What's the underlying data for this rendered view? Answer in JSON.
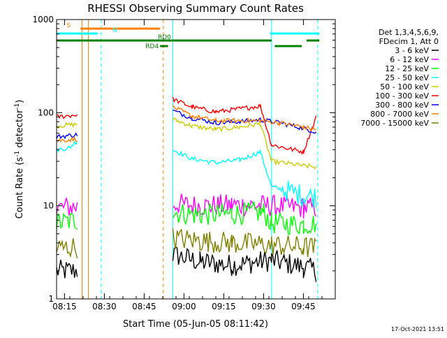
{
  "chart_data": {
    "type": "line",
    "title": "RHESSI Observing Summary Count Rates",
    "xlabel": "Start Time (05-Jun-05 08:11:42)",
    "ylabel_main": "Count Rate (s",
    "ylabel_sup1": "-1",
    "ylabel_mid": " detector",
    "ylabel_sup2": "-1",
    "ylabel_end": ")",
    "yscale": "log",
    "ylim": [
      1,
      1000
    ],
    "xlim_minutes": [
      8.2,
      9.95
    ],
    "x_ticks": [
      {
        "v": 8.25,
        "label": "08:15"
      },
      {
        "v": 8.5,
        "label": "08:30"
      },
      {
        "v": 8.75,
        "label": "08:45"
      },
      {
        "v": 9.0,
        "label": "09:00"
      },
      {
        "v": 9.25,
        "label": "09:15"
      },
      {
        "v": 9.5,
        "label": "09:30"
      },
      {
        "v": 9.75,
        "label": "09:45"
      }
    ],
    "y_ticks": [
      {
        "v": 1,
        "label": "1"
      },
      {
        "v": 10,
        "label": "10"
      },
      {
        "v": 100,
        "label": "100"
      },
      {
        "v": 1000,
        "label": "1000"
      }
    ],
    "legend_header": [
      "Det 1,3,4,5,6,9,",
      "FDecim 1, Att 0"
    ],
    "legend_position": "right",
    "series": [
      {
        "name": "3 - 6 keV",
        "color": "#000000",
        "segments": [
          [
            [
              8.2,
              2.0
            ],
            [
              8.33,
              2.0
            ]
          ],
          [
            [
              8.93,
              3.0
            ],
            [
              9.1,
              2.5
            ],
            [
              9.3,
              2.3
            ],
            [
              9.55,
              2.6
            ],
            [
              9.75,
              2.2
            ],
            [
              9.83,
              2.0
            ]
          ]
        ]
      },
      {
        "name": "6 - 12 keV",
        "color": "#ff00ff",
        "segments": [
          [
            [
              8.2,
              9.5
            ],
            [
              8.33,
              9.8
            ]
          ],
          [
            [
              8.93,
              10.5
            ],
            [
              9.1,
              10.0
            ],
            [
              9.3,
              10.2
            ],
            [
              9.55,
              10.0
            ],
            [
              9.75,
              9.5
            ],
            [
              9.83,
              9.5
            ]
          ]
        ]
      },
      {
        "name": "12 - 25 keV",
        "color": "#00ff00",
        "segments": [
          [
            [
              8.2,
              6.5
            ],
            [
              8.33,
              7.0
            ]
          ],
          [
            [
              8.93,
              8.5
            ],
            [
              9.1,
              8.0
            ],
            [
              9.3,
              8.2
            ],
            [
              9.5,
              8.5
            ],
            [
              9.55,
              6.5
            ],
            [
              9.75,
              6.3
            ],
            [
              9.83,
              6.5
            ]
          ]
        ]
      },
      {
        "name": "25 - 50 keV",
        "color": "#00ffff",
        "segments": [
          [
            [
              8.2,
              40
            ],
            [
              8.28,
              42
            ],
            [
              8.33,
              50
            ]
          ],
          [
            [
              8.93,
              40
            ],
            [
              9.05,
              32
            ],
            [
              9.2,
              29
            ],
            [
              9.35,
              31
            ],
            [
              9.48,
              38
            ],
            [
              9.55,
              16
            ],
            [
              9.75,
              13
            ],
            [
              9.83,
              12.5
            ]
          ]
        ]
      },
      {
        "name": "50 - 100 keV",
        "color": "#cccc00",
        "segments": [
          [
            [
              8.2,
              72
            ],
            [
              8.33,
              75
            ]
          ],
          [
            [
              8.93,
              85
            ],
            [
              9.05,
              72
            ],
            [
              9.2,
              66
            ],
            [
              9.35,
              70
            ],
            [
              9.48,
              76
            ],
            [
              9.55,
              30
            ],
            [
              9.75,
              27
            ],
            [
              9.83,
              26
            ]
          ]
        ]
      },
      {
        "name": "100 - 300 keV",
        "color": "#ff0000",
        "segments": [
          [
            [
              8.2,
              90
            ],
            [
              8.33,
              95
            ]
          ],
          [
            [
              8.93,
              140
            ],
            [
              9.05,
              115
            ],
            [
              9.2,
              102
            ],
            [
              9.35,
              110
            ],
            [
              9.48,
              118
            ],
            [
              9.55,
              45
            ],
            [
              9.75,
              38
            ],
            [
              9.83,
              90
            ]
          ]
        ]
      },
      {
        "name": "300 - 800 keV",
        "color": "#0000ff",
        "segments": [
          [
            [
              8.2,
              55
            ],
            [
              8.33,
              58
            ]
          ],
          [
            [
              8.93,
              105
            ],
            [
              9.05,
              88
            ],
            [
              9.2,
              78
            ],
            [
              9.35,
              80
            ],
            [
              9.48,
              84
            ],
            [
              9.6,
              78
            ],
            [
              9.75,
              68
            ],
            [
              9.83,
              62
            ]
          ]
        ]
      },
      {
        "name": "800 - 7000 keV",
        "color": "#ff8000",
        "segments": [
          [
            [
              8.2,
              50
            ],
            [
              8.33,
              52
            ]
          ],
          [
            [
              8.93,
              115
            ],
            [
              9.05,
              92
            ],
            [
              9.2,
              82
            ],
            [
              9.35,
              82
            ],
            [
              9.48,
              82
            ],
            [
              9.6,
              78
            ],
            [
              9.75,
              70
            ],
            [
              9.83,
              65
            ]
          ]
        ]
      },
      {
        "name": "7000 - 15000 keV",
        "color": "#808000",
        "segments": [
          [
            [
              8.2,
              3.5
            ],
            [
              8.33,
              3.6
            ]
          ],
          [
            [
              8.93,
              4.5
            ],
            [
              9.1,
              4.2
            ],
            [
              9.3,
              4.0
            ],
            [
              9.55,
              3.8
            ],
            [
              9.75,
              3.6
            ],
            [
              9.83,
              3.5
            ]
          ]
        ]
      }
    ],
    "flag_bars": [
      {
        "label": "S",
        "color": "#ff8000",
        "level_px": 41,
        "segments": [
          [
            8.35,
            8.85
          ]
        ]
      },
      {
        "label": "N",
        "color": "#00ffff",
        "level_px": 48,
        "segments": [
          [
            8.2,
            8.46
          ],
          [
            9.54,
            9.85
          ]
        ]
      },
      {
        "label": "RD0",
        "color": "#008000",
        "level_px": 58,
        "segments": [
          [
            8.2,
            9.55
          ],
          [
            9.77,
            9.85
          ]
        ]
      },
      {
        "label": "RD4",
        "color": "#008000",
        "level_px": 66,
        "segments": [
          [
            8.85,
            8.9
          ],
          [
            9.57,
            9.74
          ]
        ]
      }
    ],
    "vertical_markers": [
      {
        "v": 8.36,
        "color": "#ff8000",
        "style": "solid"
      },
      {
        "v": 8.4,
        "color": "#ff8000",
        "style": "solid"
      },
      {
        "v": 8.48,
        "color": "#00ffff",
        "style": "dashed"
      },
      {
        "v": 8.87,
        "color": "#ff8000",
        "style": "dashed"
      },
      {
        "v": 8.93,
        "color": "#00ffff",
        "style": "solid"
      },
      {
        "v": 9.55,
        "color": "#00ffff",
        "style": "solid"
      },
      {
        "v": 9.84,
        "color": "#00ffff",
        "style": "dashed"
      }
    ]
  },
  "footer": {
    "timestamp": "17-Oct-2021 13:51"
  }
}
